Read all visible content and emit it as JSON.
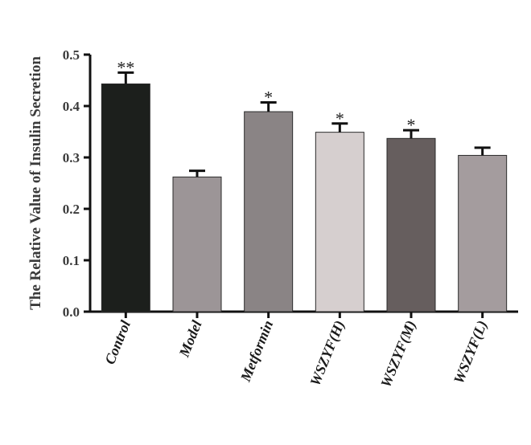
{
  "chart_data": {
    "type": "bar",
    "title": "",
    "xlabel": "",
    "ylabel": "The Relative Value of Insulin Secretion",
    "ylim": [
      0,
      0.5
    ],
    "yticks": [
      "0.0",
      "0.1",
      "0.2",
      "0.3",
      "0.4",
      "0.5"
    ],
    "categories": [
      "Control",
      "Model",
      "Metformin",
      "WSZYF(H)",
      "WSZYF(M)",
      "WSZYF(L)"
    ],
    "values": [
      0.443,
      0.262,
      0.389,
      0.349,
      0.337,
      0.304
    ],
    "errors": [
      0.022,
      0.012,
      0.018,
      0.017,
      0.016,
      0.015
    ],
    "significance": [
      "**",
      "",
      "*",
      "*",
      "*",
      ""
    ],
    "colors": [
      "#1c1f1c",
      "#9c9597",
      "#8a8485",
      "#d6cfcf",
      "#665e5e",
      "#a49c9e"
    ],
    "grid": false,
    "legend": "none"
  }
}
